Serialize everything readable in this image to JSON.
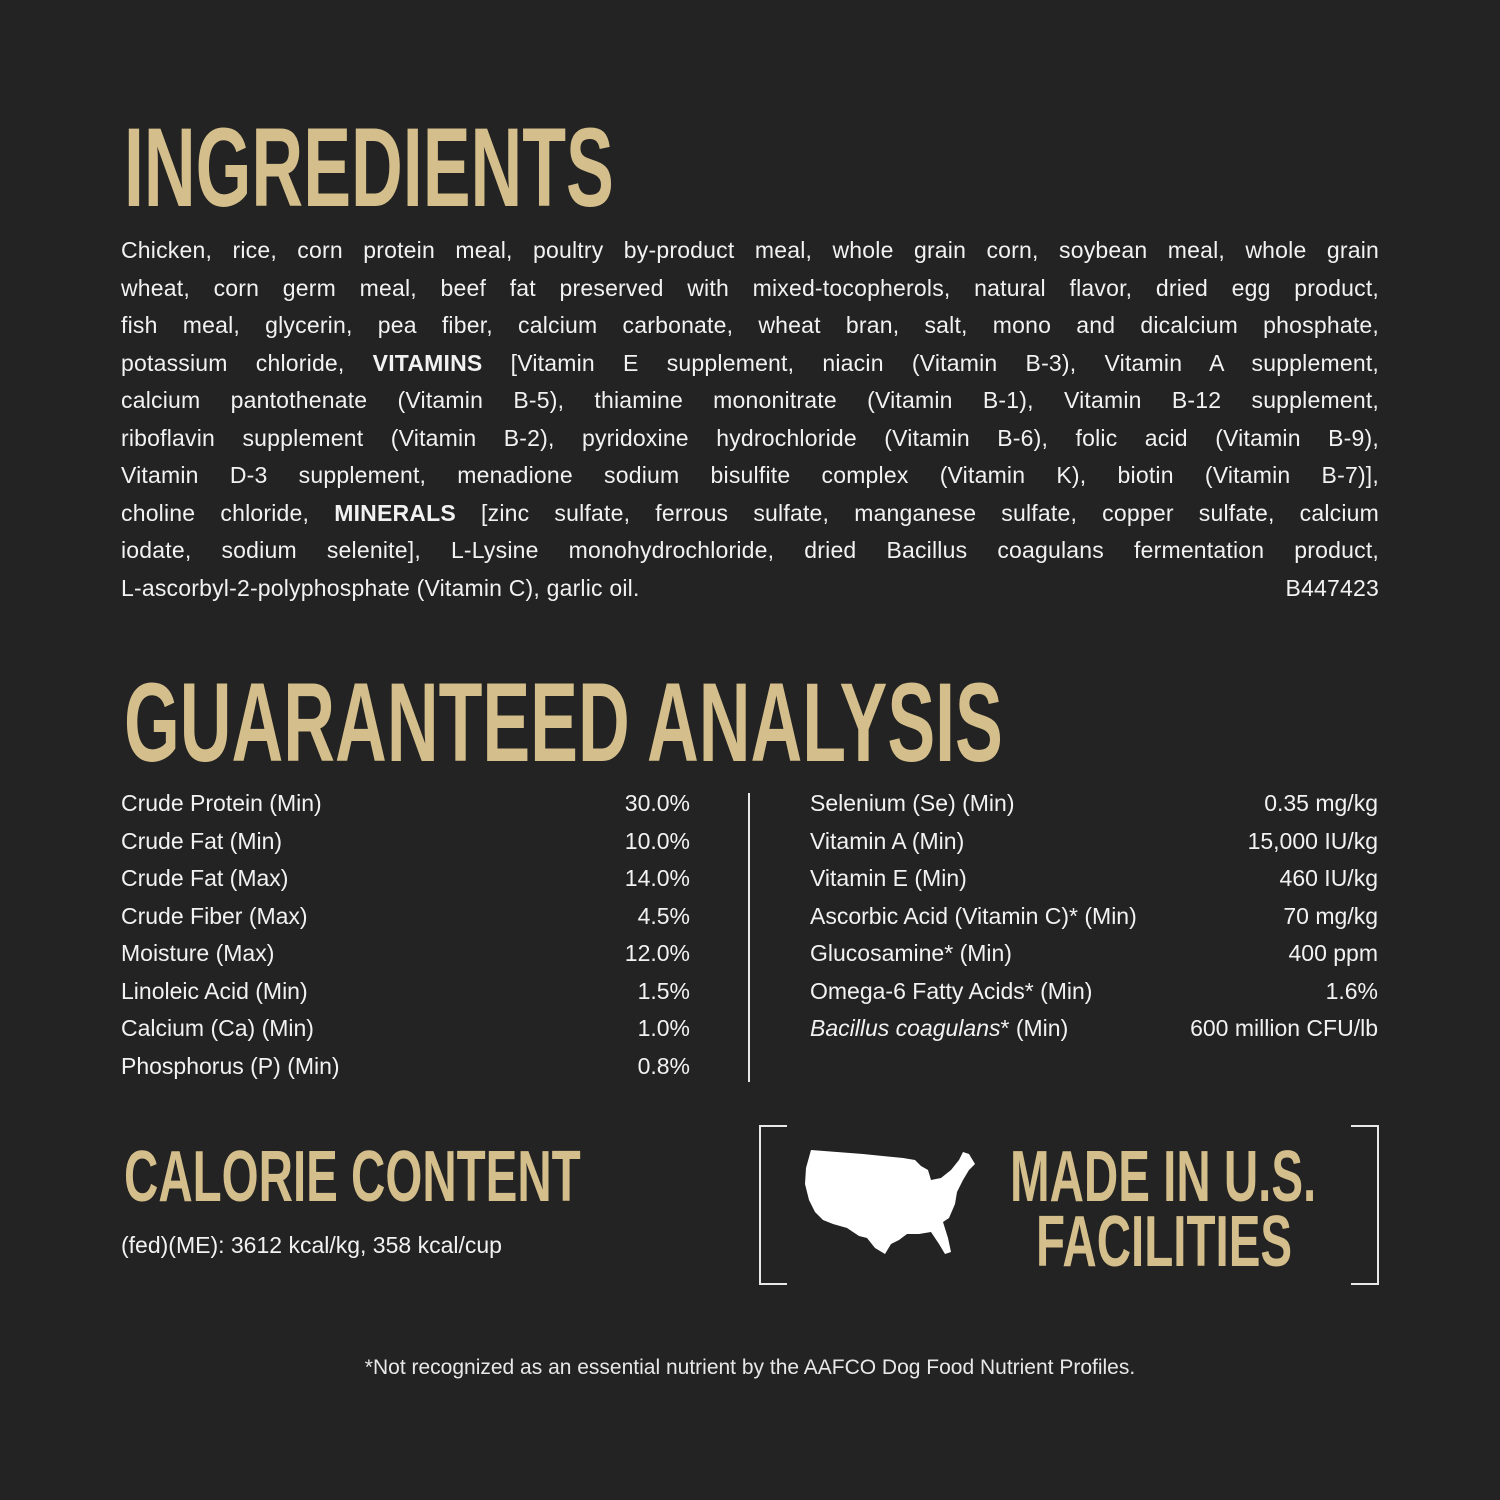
{
  "ingredients": {
    "title": "INGREDIENTS",
    "lines": [
      "Chicken, rice, corn protein meal, poultry by-product meal, whole grain corn, soybean meal, whole grain",
      "wheat, corn germ meal, beef fat preserved with mixed-tocopherols, natural flavor, dried egg product,",
      "fish meal, glycerin, pea fiber, calcium carbonate, wheat bran, salt, mono and dicalcium phosphate,",
      {
        "pre": "potassium chloride, ",
        "bold": "VITAMINS",
        "post": " [Vitamin E supplement, niacin (Vitamin B-3), Vitamin A supplement,"
      },
      "calcium pantothenate (Vitamin B-5), thiamine mononitrate (Vitamin B-1), Vitamin B-12 supplement,",
      "riboflavin supplement (Vitamin B-2), pyridoxine hydrochloride (Vitamin B-6), folic acid (Vitamin B-9),",
      "Vitamin D-3 supplement, menadione sodium bisulfite complex (Vitamin K), biotin (Vitamin B-7)],",
      {
        "pre": "choline chloride, ",
        "bold": "MINERALS",
        "post": " [zinc sulfate, ferrous sulfate, manganese sulfate, copper sulfate, calcium"
      },
      "iodate, sodium selenite], L-Lysine monohydrochloride, dried Bacillus coagulans fermentation product,",
      "L-ascorbyl-2-polyphosphate (Vitamin C), garlic oil."
    ],
    "code": "B447423"
  },
  "analysis": {
    "title": "GUARANTEED ANALYSIS",
    "left": [
      {
        "label": "Crude Protein (Min)",
        "value": "30.0%"
      },
      {
        "label": "Crude Fat (Min)",
        "value": "10.0%"
      },
      {
        "label": "Crude Fat (Max)",
        "value": "14.0%"
      },
      {
        "label": "Crude Fiber (Max)",
        "value": "4.5%"
      },
      {
        "label": "Moisture (Max)",
        "value": "12.0%"
      },
      {
        "label": "Linoleic Acid (Min)",
        "value": "1.5%"
      },
      {
        "label": "Calcium (Ca) (Min)",
        "value": "1.0%"
      },
      {
        "label": "Phosphorus (P) (Min)",
        "value": "0.8%"
      }
    ],
    "right": [
      {
        "label": "Selenium (Se) (Min)",
        "value": "0.35 mg/kg"
      },
      {
        "label": "Vitamin A (Min)",
        "value": "15,000 IU/kg"
      },
      {
        "label": "Vitamin E (Min)",
        "value": "460 IU/kg"
      },
      {
        "label": "Ascorbic Acid (Vitamin C)* (Min)",
        "value": "70 mg/kg"
      },
      {
        "label": "Glucosamine* (Min)",
        "value": "400 ppm"
      },
      {
        "label": "Omega-6 Fatty Acids* (Min)",
        "value": "1.6%"
      },
      {
        "label_italic": "Bacillus coagulans",
        "label": "* (Min)",
        "value": "600 million CFU/lb"
      }
    ]
  },
  "calorie": {
    "title": "CALORIE CONTENT",
    "text": "(fed)(ME): 3612 kcal/kg, 358 kcal/cup"
  },
  "made_in": {
    "line1": "MADE IN U.S.",
    "line2": "FACILITIES",
    "icon": "usa-map-icon"
  },
  "footnote": "*Not recognized as an essential nutrient by the AAFCO Dog Food Nutrient Profiles.",
  "colors": {
    "background": "#222322",
    "accent": "#d4be8b",
    "text": "#f2f2f2"
  }
}
